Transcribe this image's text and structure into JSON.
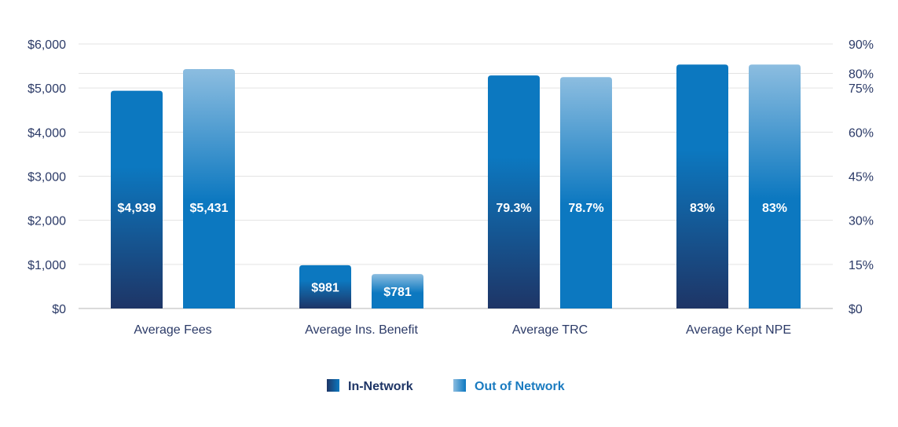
{
  "chart_data": {
    "type": "bar",
    "categories": [
      "Average Fees",
      "Average Ins. Benefit",
      "Average TRC",
      "Average Kept NPE"
    ],
    "series": [
      {
        "name": "In-Network",
        "values": [
          4939,
          981,
          0.793,
          0.83
        ],
        "labels": [
          "$4,939",
          "$981",
          "79.3%",
          "83%"
        ]
      },
      {
        "name": "Out of Network",
        "values": [
          5431,
          781,
          0.787,
          0.83
        ],
        "labels": [
          "$5,431",
          "$781",
          "78.7%",
          "83%"
        ]
      }
    ],
    "axis_left": {
      "ticks": [
        0,
        1000,
        2000,
        3000,
        4000,
        5000,
        6000
      ],
      "tick_labels": [
        "$0",
        "$1,000",
        "$2,000",
        "$3,000",
        "$4,000",
        "$5,000",
        "$6,000"
      ],
      "ylim": [
        0,
        6000
      ],
      "applies_to": [
        "Average Fees",
        "Average Ins. Benefit"
      ]
    },
    "axis_right": {
      "ticks": [
        0,
        0.15,
        0.3,
        0.45,
        0.6,
        0.75,
        0.8,
        0.9
      ],
      "tick_labels": [
        "$0",
        "15%",
        "30%",
        "45%",
        "60%",
        "75%",
        "80%",
        "90%"
      ],
      "ylim": [
        0,
        0.9
      ],
      "applies_to": [
        "Average TRC",
        "Average Kept NPE"
      ]
    },
    "grid": true,
    "legend_position": "bottom-center",
    "colors": {
      "in_network_top": "#0c78c0",
      "in_network_bottom": "#1e3566",
      "out_network_top": "#8cbde0",
      "out_network_bottom": "#0c78c0",
      "text": "#2b3a67",
      "legend_in_text": "#1e3566",
      "legend_out_text": "#1a7bc0",
      "grid": "#e3e3e3",
      "axis": "#b5b5b5"
    }
  }
}
